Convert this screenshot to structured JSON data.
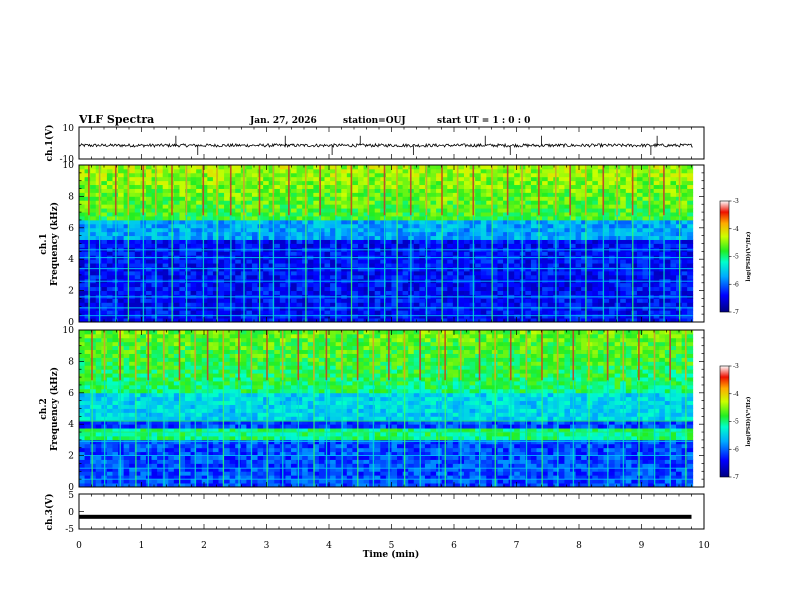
{
  "header": {
    "title": "VLF Spectra",
    "date": "Jan. 27, 2026",
    "station": "station=OUJ",
    "start_ut": "start UT =  1 : 0  : 0"
  },
  "chart_data": [
    {
      "type": "line",
      "name": "ch1-waveform",
      "ylabel": "ch.1(V)",
      "ylim": [
        -10,
        10
      ],
      "y_tick_labels": [
        "10",
        "-10"
      ],
      "xlim": [
        0,
        10
      ],
      "baseline": -1.5,
      "noise_amplitude": 1.0,
      "spike_times_min": [
        1.55,
        1.9,
        3.3,
        4.05,
        4.5,
        5.35,
        6.5,
        6.9,
        7.4,
        9.15,
        9.25
      ]
    },
    {
      "type": "heatmap",
      "name": "ch1-spectrogram",
      "ylabel": "ch.1\nFrequency (kHz)",
      "ylim": [
        0,
        10
      ],
      "y_tick_labels": [
        "0",
        "2",
        "4",
        "6",
        "8",
        "10"
      ],
      "xlim": [
        0,
        10
      ],
      "colorbar": {
        "ticks": [
          "-3",
          "-4",
          "-5",
          "-6",
          "-7"
        ],
        "label": "log(PSD)(V²/Hz)",
        "range": [
          -7,
          -3
        ]
      },
      "sferic_times_min": [
        0.15,
        0.32,
        0.58,
        0.78,
        1.02,
        1.22,
        1.48,
        1.71,
        1.98,
        2.2,
        2.42,
        2.63,
        2.88,
        3.1,
        3.35,
        3.62,
        3.85,
        4.1,
        4.35,
        4.62,
        4.88,
        5.08,
        5.3,
        5.55,
        5.8,
        6.05,
        6.3,
        6.6,
        6.85,
        7.08,
        7.35,
        7.62,
        7.85,
        8.1,
        8.38,
        8.6,
        8.85,
        9.12,
        9.35,
        9.6
      ]
    },
    {
      "type": "heatmap",
      "name": "ch2-spectrogram",
      "ylabel": "ch.2\nFrequency (kHz)",
      "ylim": [
        0,
        10
      ],
      "y_tick_labels": [
        "0",
        "2",
        "4",
        "6",
        "8",
        "10"
      ],
      "xlim": [
        0,
        10
      ],
      "colorbar": {
        "ticks": [
          "-3",
          "-4",
          "-5",
          "-6",
          "-7"
        ],
        "label": "log(PSD)(V²/Hz)",
        "range": [
          -7,
          -3
        ]
      },
      "sferic_times_min": [
        0.2,
        0.4,
        0.65,
        0.9,
        1.1,
        1.35,
        1.6,
        1.85,
        2.05,
        2.3,
        2.55,
        2.75,
        3.0,
        3.25,
        3.5,
        3.75,
        3.95,
        4.2,
        4.45,
        4.7,
        4.95,
        5.2,
        5.45,
        5.75,
        5.85,
        6.1,
        6.4,
        6.65,
        6.9,
        7.15,
        7.4,
        7.65,
        7.9,
        8.15,
        8.45,
        8.7,
        8.95,
        9.2,
        9.45,
        9.7
      ]
    },
    {
      "type": "line",
      "name": "ch3-waveform",
      "ylabel": "ch.3(V)",
      "ylim": [
        -5,
        5
      ],
      "y_tick_labels": [
        "5",
        "0",
        "-5"
      ],
      "xlim": [
        0,
        10
      ],
      "constant_value": -1.5,
      "data_end_min": 9.8
    }
  ],
  "x_axis": {
    "label": "Time (min)",
    "tick_labels": [
      "0",
      "1",
      "2",
      "3",
      "4",
      "5",
      "6",
      "7",
      "8",
      "9",
      "10"
    ]
  }
}
